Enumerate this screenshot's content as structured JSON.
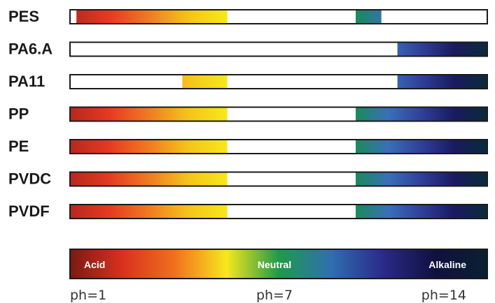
{
  "chart_data": {
    "type": "bar",
    "categories": [
      "PES",
      "PA6.A",
      "PA11",
      "PP",
      "PE",
      "PVDC",
      "PVDF"
    ],
    "x_range": [
      1,
      14
    ],
    "resistance": [
      {
        "category": "PES",
        "ranges": [
          [
            1.2,
            5.9
          ],
          [
            9.9,
            10.7
          ]
        ]
      },
      {
        "category": "PA6.A",
        "ranges": [
          [
            11.2,
            14
          ]
        ]
      },
      {
        "category": "PA11",
        "ranges": [
          [
            4.5,
            5.9
          ],
          [
            11.2,
            14
          ]
        ]
      },
      {
        "category": "PP",
        "ranges": [
          [
            1,
            5.9
          ],
          [
            9.9,
            14
          ]
        ]
      },
      {
        "category": "PE",
        "ranges": [
          [
            1,
            5.9
          ],
          [
            9.9,
            14
          ]
        ]
      },
      {
        "category": "PVDC",
        "ranges": [
          [
            1,
            5.9
          ],
          [
            9.9,
            14
          ]
        ]
      },
      {
        "category": "PVDF",
        "ranges": [
          [
            1,
            5.9
          ],
          [
            9.9,
            14
          ]
        ]
      }
    ],
    "legend": {
      "labels": [
        "Acid",
        "Neutral",
        "Alkaline"
      ],
      "ticks": [
        "ph=1",
        "ph=7",
        "ph=14"
      ]
    },
    "colors": {
      "acid_stops": [
        "#b5281f",
        "#e53a22",
        "#f07a22",
        "#f5c31c",
        "#f7e81c"
      ],
      "alkaline_stops": [
        "#1a8a5a",
        "#3a6fb8",
        "#2f3f9a",
        "#1a1a60",
        "#0b2a3a"
      ],
      "spectrum_stops": [
        "#7a1a12",
        "#d9301f",
        "#f0701e",
        "#f7e81c",
        "#1f9a4a",
        "#2f6fb0",
        "#2a2a8a",
        "#101040",
        "#0a2030"
      ]
    }
  }
}
